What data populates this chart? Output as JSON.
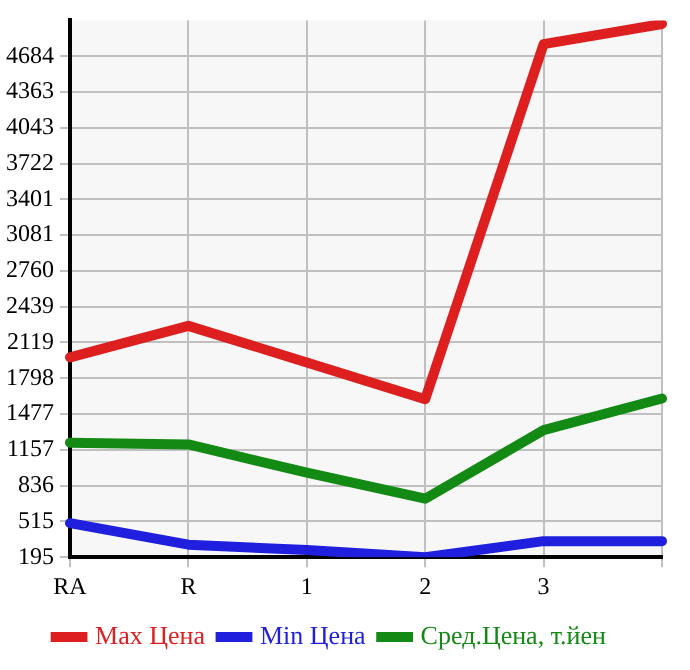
{
  "chart_data": {
    "type": "line",
    "categories": [
      "RA",
      "R",
      "1",
      "2",
      "3",
      null
    ],
    "series": [
      {
        "name": "Max Цена",
        "color": "#dd1f1f",
        "values": [
          1986,
          2268,
          1940,
          1611,
          4792,
          4973
        ]
      },
      {
        "name": "Min Цена",
        "color": "#1f1fdd",
        "values": [
          500,
          307,
          259,
          195,
          339,
          339
        ]
      },
      {
        "name": "Сред.Цена, т.йен",
        "color": "#138a13",
        "values": [
          1221,
          1205,
          953,
          719,
          1333,
          1617
        ]
      }
    ],
    "ylim": [
      195,
      5005
    ],
    "yticks": [
      195,
      515,
      836,
      1157,
      1477,
      1798,
      2119,
      2439,
      2760,
      3081,
      3401,
      3722,
      4043,
      4363,
      4684
    ],
    "grid": true,
    "legend": "bottom",
    "marker": "none",
    "line_style": "solid"
  }
}
